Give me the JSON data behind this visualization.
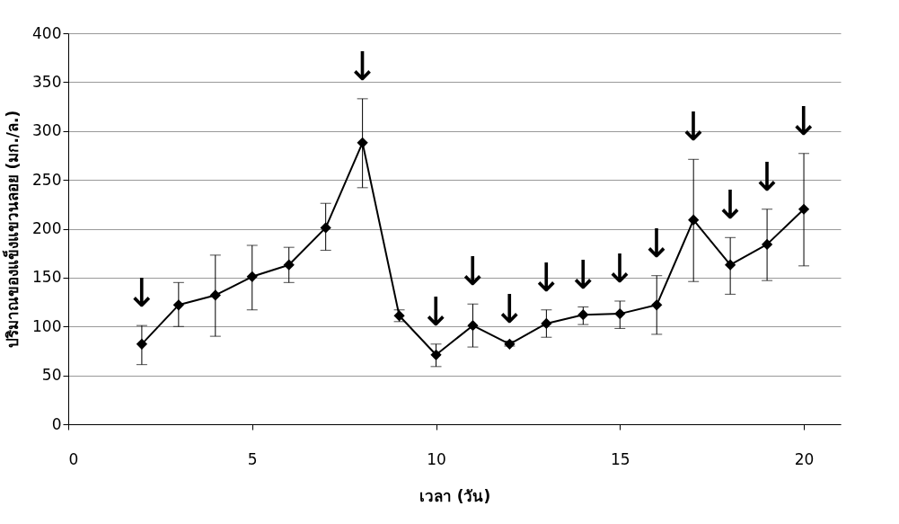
{
  "chart_data": {
    "type": "line",
    "xlabel": "เวลา (วัน)",
    "ylabel": "ปริมาณของแข็งแขวนลอย (มก./ล.)",
    "x": [
      2,
      3,
      4,
      5,
      6,
      7,
      8,
      9,
      10,
      11,
      12,
      13,
      14,
      15,
      16,
      17,
      18,
      19,
      20
    ],
    "series": [
      {
        "color": "#000000",
        "values": [
          82,
          122,
          132,
          151,
          163,
          201,
          288,
          111,
          71,
          101,
          82,
          103,
          112,
          113,
          122,
          209,
          163,
          184,
          220
        ],
        "errors": [
          [
            61,
            101
          ],
          [
            100,
            145
          ],
          [
            90,
            173
          ],
          [
            117,
            183
          ],
          [
            145,
            181
          ],
          [
            178,
            226
          ],
          [
            242,
            333
          ],
          [
            105,
            117
          ],
          [
            59,
            82
          ],
          [
            79,
            123
          ],
          [
            80,
            85
          ],
          [
            89,
            117
          ],
          [
            102,
            120
          ],
          [
            98,
            126
          ],
          [
            92,
            152
          ],
          [
            146,
            271
          ],
          [
            133,
            191
          ],
          [
            147,
            220
          ],
          [
            162,
            277
          ]
        ]
      }
    ],
    "annotations": [
      {
        "text": "↓",
        "x": 2,
        "y": 82
      },
      {
        "text": "↓",
        "x": 8,
        "y": 288
      },
      {
        "text": "↓",
        "x": 10,
        "y": 71
      },
      {
        "text": "↓",
        "x": 11,
        "y": 101
      },
      {
        "text": "↓",
        "x": 12,
        "y": 82
      },
      {
        "text": "↓",
        "x": 13,
        "y": 103
      },
      {
        "text": "↓",
        "x": 14,
        "y": 112
      },
      {
        "text": "↓",
        "x": 15,
        "y": 113
      },
      {
        "text": "↓",
        "x": 16,
        "y": 122
      },
      {
        "text": "↓",
        "x": 17,
        "y": 209
      },
      {
        "text": "↓",
        "x": 18,
        "y": 163
      },
      {
        "text": "↓",
        "x": 19,
        "y": 184
      },
      {
        "text": "↓",
        "x": 20,
        "y": 220
      }
    ],
    "xlim": [
      0,
      21
    ],
    "xticks": [
      0,
      5,
      10,
      15,
      20
    ],
    "ylim": [
      0,
      400
    ],
    "yticks": [
      0,
      50,
      100,
      150,
      200,
      250,
      300,
      350,
      400
    ],
    "grid": "y",
    "marker": "diamond",
    "line_style": "solid"
  }
}
